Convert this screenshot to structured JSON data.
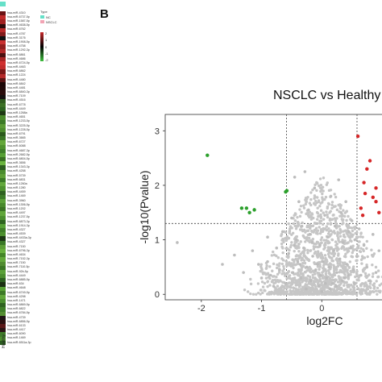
{
  "panel_label": "B",
  "heatmap": {
    "legend": {
      "title": "Type",
      "groups": [
        {
          "name": "NC",
          "color": "#66e0c8"
        },
        {
          "name": "NSCLC",
          "color": "#f2a4b4"
        }
      ],
      "scale_ticks": [
        "2",
        "1",
        "0",
        "-1",
        "-2"
      ],
      "scale_colors": [
        "#c8282a",
        "#000000",
        "#3cc03c"
      ]
    },
    "rows": [
      {
        "label": "hsa-miR-4310",
        "color": "#6b1214"
      },
      {
        "label": "hsa-miR-6737-5p",
        "color": "#c02a2a"
      },
      {
        "label": "hsa-miR-1587-5p",
        "color": "#a02020"
      },
      {
        "label": "hsa-miR-4638-5p",
        "color": "#2a0a0a"
      },
      {
        "label": "hsa-miR-6762",
        "color": "#b82828"
      },
      {
        "label": "hsa-miR-4787",
        "color": "#801a1a"
      },
      {
        "label": "hsa-miR-3176",
        "color": "#101010"
      },
      {
        "label": "hsa-miR-1908-5p",
        "color": "#c83030"
      },
      {
        "label": "hsa-miR-4758",
        "color": "#901e1e"
      },
      {
        "label": "hsa-miR-1292-3p",
        "color": "#b02828"
      },
      {
        "label": "hsa-miR-6861",
        "color": "#4a1010"
      },
      {
        "label": "hsa-miR-4686",
        "color": "#a82424"
      },
      {
        "label": "hsa-miR-6724-5p",
        "color": "#d03030"
      },
      {
        "label": "hsa-miR-4463",
        "color": "#c02c2c"
      },
      {
        "label": "hsa-miR-6862",
        "color": "#7a1818"
      },
      {
        "label": "hsa-miR-1224",
        "color": "#b42a2a"
      },
      {
        "label": "hsa-miR-4480",
        "color": "#5a1414"
      },
      {
        "label": "hsa-miR-6842",
        "color": "#1c0808"
      },
      {
        "label": "hsa-miR-4481",
        "color": "#200a0a"
      },
      {
        "label": "hsa-miR-6840-3p",
        "color": "#2a0c0c"
      },
      {
        "label": "hsa-miR-7109",
        "color": "#141010"
      },
      {
        "label": "hsa-miR-4516",
        "color": "#2e5a1e"
      },
      {
        "label": "hsa-miR-6778",
        "color": "#3a7024"
      },
      {
        "label": "hsa-miR-4449",
        "color": "#2c6220"
      },
      {
        "label": "hsa-miR-1268a",
        "color": "#1e3a14"
      },
      {
        "label": "hsa-miR-4651",
        "color": "#4a8a2c"
      },
      {
        "label": "hsa-miR-1233-5p",
        "color": "#3c7a26"
      },
      {
        "label": "hsa-miR-3225-5p",
        "color": "#5a9a34"
      },
      {
        "label": "hsa-miR-1228-5p",
        "color": "#4c8c2e"
      },
      {
        "label": "hsa-miR-6791",
        "color": "#2a5a1c"
      },
      {
        "label": "hsa-miR-3665",
        "color": "#3a7626"
      },
      {
        "label": "hsa-miR-6727",
        "color": "#64a83a"
      },
      {
        "label": "hsa-miR-6088",
        "color": "#4e922e"
      },
      {
        "label": "hsa-miR-4687-3p",
        "color": "#3e7e28"
      },
      {
        "label": "hsa-miR-2682-5p",
        "color": "#56a034"
      },
      {
        "label": "hsa-miR-6804-5p",
        "color": "#387022"
      },
      {
        "label": "hsa-miR-3656",
        "color": "#6ab43e"
      },
      {
        "label": "hsa-miR-1343-3p",
        "color": "#2c5e1e"
      },
      {
        "label": "hsa-miR-4258",
        "color": "#4a8c2e"
      },
      {
        "label": "hsa-miR-5739",
        "color": "#5c9e36"
      },
      {
        "label": "hsa-miR-6831",
        "color": "#3a7a26"
      },
      {
        "label": "hsa-miR-1260a",
        "color": "#62a83c"
      },
      {
        "label": "hsa-miR-1280",
        "color": "#4e9230"
      },
      {
        "label": "hsa-miR-4459",
        "color": "#2e6220"
      },
      {
        "label": "hsa-miR-1469",
        "color": "#3c7c28"
      },
      {
        "label": "hsa-miR-3960",
        "color": "#5aa038"
      },
      {
        "label": "hsa-miR-1306-5p",
        "color": "#488a2c"
      },
      {
        "label": "hsa-miR-1202",
        "color": "#3a7424"
      },
      {
        "label": "hsa-miR-4497",
        "color": "#60a63a"
      },
      {
        "label": "hsa-miR-1237-5p",
        "color": "#4a8e2e"
      },
      {
        "label": "hsa-miR-6873-3p",
        "color": "#2e6420"
      },
      {
        "label": "hsa-miR-1914-3p",
        "color": "#56a036"
      },
      {
        "label": "hsa-miR-4327",
        "color": "#3e7e28"
      },
      {
        "label": "hsa-miR-4539",
        "color": "#4c902e"
      },
      {
        "label": "hsa-miR-4433a-3p",
        "color": "#1c3814"
      },
      {
        "label": "hsa-miR-4327",
        "color": "#3a7826"
      },
      {
        "label": "hsa-miR-7150",
        "color": "#5c9e36"
      },
      {
        "label": "hsa-miR-6796-3p",
        "color": "#68b03e"
      },
      {
        "label": "hsa-miR-4634",
        "color": "#448628"
      },
      {
        "label": "hsa-miR-7152-3p",
        "color": "#62a83a"
      },
      {
        "label": "hsa-miR-7150",
        "color": "#508c30"
      },
      {
        "label": "hsa-miR-7110-5p",
        "color": "#3a7624"
      },
      {
        "label": "hsa-miR-92b-5p",
        "color": "#5aa038"
      },
      {
        "label": "hsa-miR-4449",
        "color": "#4a8c2e"
      },
      {
        "label": "hsa-miR-6885-5p",
        "color": "#2c6020"
      },
      {
        "label": "hsa-miR-634",
        "color": "#1a3012"
      },
      {
        "label": "hsa-miR-4648",
        "color": "#56a034"
      },
      {
        "label": "hsa-miR-6749-5p",
        "color": "#3c7a26"
      },
      {
        "label": "hsa-miR-4298",
        "color": "#60a63a"
      },
      {
        "label": "hsa-miR-1471",
        "color": "#4a8e2e"
      },
      {
        "label": "hsa-miR-6869-5p",
        "color": "#2e6220"
      },
      {
        "label": "hsa-miR-6822",
        "color": "#3e7e28"
      },
      {
        "label": "hsa-miR-6784-5p",
        "color": "#548e32"
      },
      {
        "label": "hsa-miR-4739",
        "color": "#1e1414"
      },
      {
        "label": "hsa-miR-6856-5p",
        "color": "#2a1010"
      },
      {
        "label": "hsa-miR-6133",
        "color": "#5a1818"
      },
      {
        "label": "hsa-miR-4417",
        "color": "#2a1414"
      },
      {
        "label": "hsa-miR-6090",
        "color": "#3e7a28"
      },
      {
        "label": "hsa-miR-1469",
        "color": "#4e9030"
      },
      {
        "label": "hsa-miR-6511a-3p",
        "color": "#2c5c20"
      }
    ],
    "bottom_label": "Healthy"
  },
  "chart_data": {
    "type": "scatter",
    "title": "NSCLC vs Healthy",
    "xlabel": "log2FC",
    "ylabel": "-log10(Pvalue)",
    "xlim": [
      -2.6,
      1.0
    ],
    "ylim": [
      -0.1,
      3.3
    ],
    "x_ticks": [
      "-2",
      "-1",
      "0"
    ],
    "y_ticks": [
      "0",
      "1",
      "2",
      "3"
    ],
    "grid": false,
    "vertical_thresholds": [
      -0.585,
      0.585
    ],
    "horizontal_threshold": 1.3,
    "series": [
      {
        "color": "#2ca02c",
        "points": [
          [
            -1.9,
            2.55
          ],
          [
            -1.33,
            1.58
          ],
          [
            -1.25,
            1.58
          ],
          [
            -1.12,
            1.55
          ],
          [
            -1.2,
            1.5
          ],
          [
            -0.6,
            1.88
          ],
          [
            -0.58,
            1.9
          ]
        ]
      },
      {
        "color": "#d62728",
        "points": [
          [
            0.6,
            2.9
          ],
          [
            0.75,
            2.3
          ],
          [
            0.7,
            2.05
          ],
          [
            0.72,
            1.85
          ],
          [
            0.85,
            1.78
          ],
          [
            0.9,
            1.7
          ],
          [
            0.65,
            1.58
          ],
          [
            0.68,
            1.45
          ],
          [
            0.95,
            1.5
          ],
          [
            0.8,
            2.45
          ],
          [
            0.9,
            1.95
          ]
        ]
      },
      {
        "color": "#bdbdbd",
        "points": [
          [
            -2.4,
            0.95
          ],
          [
            -1.65,
            0.55
          ],
          [
            -1.45,
            0.72
          ],
          [
            -1.15,
            0.8
          ],
          [
            -1.05,
            0.55
          ],
          [
            -0.9,
            0.6
          ],
          [
            -0.9,
            1.05
          ],
          [
            -0.85,
            0.35
          ],
          [
            -0.75,
            0.85
          ],
          [
            -0.7,
            0.45
          ],
          [
            -0.65,
            1.15
          ],
          [
            -0.6,
            0.2
          ],
          [
            -0.55,
            0.75
          ],
          [
            -0.5,
            1.4
          ],
          [
            -0.48,
            0.4
          ],
          [
            -0.45,
            2.15
          ],
          [
            -0.42,
            1.0
          ],
          [
            -0.4,
            0.6
          ],
          [
            -0.38,
            1.7
          ],
          [
            -0.35,
            0.3
          ],
          [
            -0.33,
            1.25
          ],
          [
            -0.3,
            0.85
          ],
          [
            -0.28,
            2.25
          ],
          [
            -0.25,
            0.5
          ],
          [
            -0.22,
            1.55
          ],
          [
            -0.2,
            1.1
          ],
          [
            -0.18,
            0.25
          ],
          [
            -0.15,
            0.7
          ],
          [
            -0.12,
            1.95
          ],
          [
            -0.1,
            0.45
          ],
          [
            -0.08,
            1.3
          ],
          [
            -0.05,
            0.15
          ],
          [
            -0.03,
            0.9
          ],
          [
            0.0,
            0.05
          ],
          [
            0.02,
            0.6
          ],
          [
            0.05,
            1.45
          ],
          [
            0.08,
            0.3
          ],
          [
            0.1,
            1.05
          ],
          [
            0.12,
            0.5
          ],
          [
            0.15,
            1.8
          ],
          [
            0.18,
            0.2
          ],
          [
            0.2,
            0.8
          ],
          [
            0.22,
            1.25
          ],
          [
            0.25,
            0.4
          ],
          [
            0.28,
            2.1
          ],
          [
            0.3,
            0.65
          ],
          [
            0.32,
            1.5
          ],
          [
            0.35,
            0.95
          ],
          [
            0.38,
            0.3
          ],
          [
            0.4,
            1.7
          ],
          [
            0.42,
            0.55
          ],
          [
            0.45,
            1.15
          ],
          [
            0.48,
            0.85
          ],
          [
            0.5,
            1.35
          ],
          [
            0.52,
            0.45
          ],
          [
            0.55,
            1.0
          ],
          [
            0.58,
            0.7
          ],
          [
            0.62,
            1.2
          ],
          [
            0.7,
            0.9
          ],
          [
            0.75,
            0.5
          ],
          [
            0.85,
            1.1
          ],
          [
            0.95,
            0.8
          ],
          [
            -0.02,
            0.35
          ],
          [
            0.06,
            0.2
          ],
          [
            -0.07,
            0.55
          ],
          [
            0.14,
            0.1
          ],
          [
            -0.16,
            0.95
          ],
          [
            0.24,
            0.15
          ],
          [
            -0.26,
            0.1
          ],
          [
            0.34,
            0.25
          ],
          [
            -0.36,
            0.55
          ],
          [
            0.44,
            0.35
          ],
          [
            -0.46,
            0.9
          ],
          [
            0.54,
            0.2
          ],
          [
            -1.3,
            0.4
          ],
          [
            -1.0,
            0.3
          ],
          [
            -0.8,
            0.15
          ],
          [
            0.65,
            0.35
          ],
          [
            0.8,
            0.25
          ],
          [
            0.9,
            0.4
          ]
        ]
      }
    ]
  }
}
